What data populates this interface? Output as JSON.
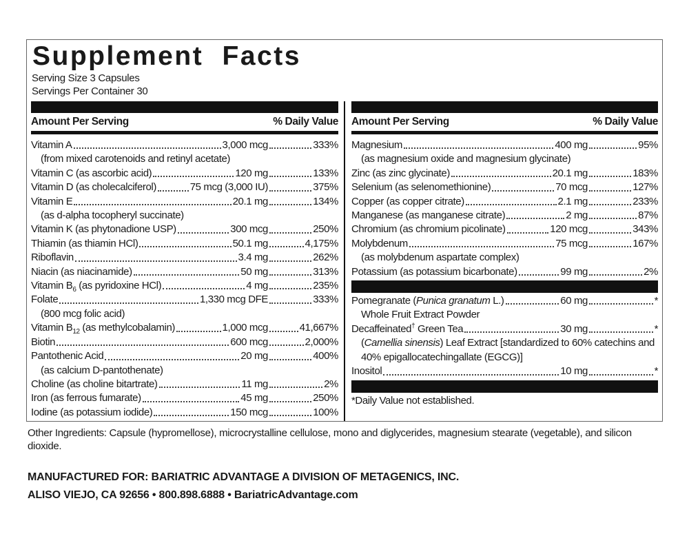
{
  "title": "Supplement Facts",
  "serving_size": "Serving Size 3 Capsules",
  "servings_per_container": "Servings Per Container 30",
  "left": {
    "header": {
      "amount": "Amount Per Serving",
      "dv": "% Daily Value"
    },
    "sections": [
      {
        "rows": [
          {
            "label": [
              "Vitamin A"
            ],
            "amount": "3,000 mcg",
            "dv": "333%",
            "note": [
              "(from mixed carotenoids and retinyl acetate)"
            ]
          },
          {
            "label": [
              "Vitamin C (as ascorbic acid)"
            ],
            "amount": "120 mg",
            "dv": "133%"
          },
          {
            "label": [
              "Vitamin D (as cholecalciferol)"
            ],
            "amount": "75 mcg (3,000 IU)",
            "dv": "375%"
          },
          {
            "label": [
              "Vitamin E"
            ],
            "amount": "20.1 mg",
            "dv": "134%",
            "note": [
              "(as d-alpha tocopheryl succinate)"
            ]
          },
          {
            "label": [
              "Vitamin K (as phytonadione USP)"
            ],
            "amount": "300 mcg",
            "dv": "250%"
          },
          {
            "label": [
              "Thiamin (as thiamin HCl)"
            ],
            "amount": "50.1 mg",
            "dv": "4,175%"
          },
          {
            "label": [
              "Riboflavin"
            ],
            "amount": "3.4 mg",
            "dv": "262%"
          },
          {
            "label": [
              "Niacin (as niacinamide)"
            ],
            "amount": "50 mg",
            "dv": "313%"
          },
          {
            "label": [
              "Vitamin B",
              {
                "text": "6",
                "style": "sub"
              },
              " (as pyridoxine HCl)"
            ],
            "amount": "4 mg",
            "dv": "235%"
          },
          {
            "label": [
              "Folate"
            ],
            "amount": "1,330 mcg DFE",
            "dv": "333%",
            "note": [
              "(800 mcg folic acid)"
            ]
          },
          {
            "label": [
              "Vitamin B",
              {
                "text": "12",
                "style": "sub"
              },
              " (as methylcobalamin)"
            ],
            "amount": "1,000 mcg",
            "dv": "41,667%"
          },
          {
            "label": [
              "Biotin"
            ],
            "amount": "600 mcg",
            "dv": "2,000%"
          },
          {
            "label": [
              "Pantothenic Acid"
            ],
            "amount": "20 mg",
            "dv": "400%",
            "note": [
              "(as calcium D-pantothenate)"
            ]
          },
          {
            "label": [
              "Choline (as choline bitartrate)"
            ],
            "amount": "11 mg",
            "dv": "2%"
          },
          {
            "label": [
              "Iron (as ferrous fumarate)"
            ],
            "amount": "45 mg",
            "dv": "250%"
          },
          {
            "label": [
              "Iodine (as potassium iodide)"
            ],
            "amount": "150 mcg",
            "dv": "100%"
          }
        ]
      }
    ]
  },
  "right": {
    "header": {
      "amount": "Amount Per Serving",
      "dv": "% Daily Value"
    },
    "sections": [
      {
        "rows": [
          {
            "label": [
              "Magnesium"
            ],
            "amount": "400 mg",
            "dv": "95%",
            "note": [
              "(as magnesium oxide and magnesium glycinate)"
            ]
          },
          {
            "label": [
              "Zinc (as zinc glycinate)"
            ],
            "amount": "20.1 mg",
            "dv": "183%"
          },
          {
            "label": [
              "Selenium (as selenomethionine)"
            ],
            "amount": "70 mcg",
            "dv": "127%"
          },
          {
            "label": [
              "Copper (as copper citrate)"
            ],
            "amount": "2.1 mg",
            "dv": "233%"
          },
          {
            "label": [
              "Manganese (as manganese citrate)"
            ],
            "amount": "2 mg",
            "dv": "87%"
          },
          {
            "label": [
              "Chromium (as chromium picolinate)"
            ],
            "amount": "120 mcg",
            "dv": "343%"
          },
          {
            "label": [
              "Molybdenum"
            ],
            "amount": "75 mcg",
            "dv": "167%",
            "note": [
              "(as molybdenum aspartate complex)"
            ]
          },
          {
            "label": [
              "Potassium (as potassium bicarbonate)"
            ],
            "amount": "99 mg",
            "dv": "2%"
          }
        ]
      },
      {
        "rows": [
          {
            "label": [
              "Pomegranate (",
              {
                "text": "Punica granatum",
                "style": "italic"
              },
              " L.)"
            ],
            "amount": "60 mg",
            "dv": "*",
            "note": [
              "Whole Fruit Extract Powder"
            ]
          },
          {
            "label": [
              "Decaffeinated",
              {
                "text": "†",
                "style": "sup"
              },
              " Green Tea"
            ],
            "amount": "30 mg",
            "dv": "*",
            "note": [
              "(",
              {
                "text": "Camellia sinensis",
                "style": "italic"
              },
              ") Leaf Extract [standardized to 60% catechins and 40% epigallocatechingallate (EGCG)]"
            ]
          },
          {
            "label": [
              "Inositol"
            ],
            "amount": "10 mg",
            "dv": "*"
          }
        ]
      }
    ],
    "footnote": "*Daily Value not established."
  },
  "other_ingredients": "Other Ingredients: Capsule (hypromellose), microcrystalline cellulose, mono and diglycerides, magnesium stearate (vegetable), and silicon dioxide.",
  "manufacturer": {
    "line1": "MANUFACTURED FOR: BARIATRIC ADVANTAGE A DIVISION OF METAGENICS, INC.",
    "line2": "ALISO VIEJO, CA 92656 • 800.898.6888 • BariatricAdvantage.com"
  }
}
